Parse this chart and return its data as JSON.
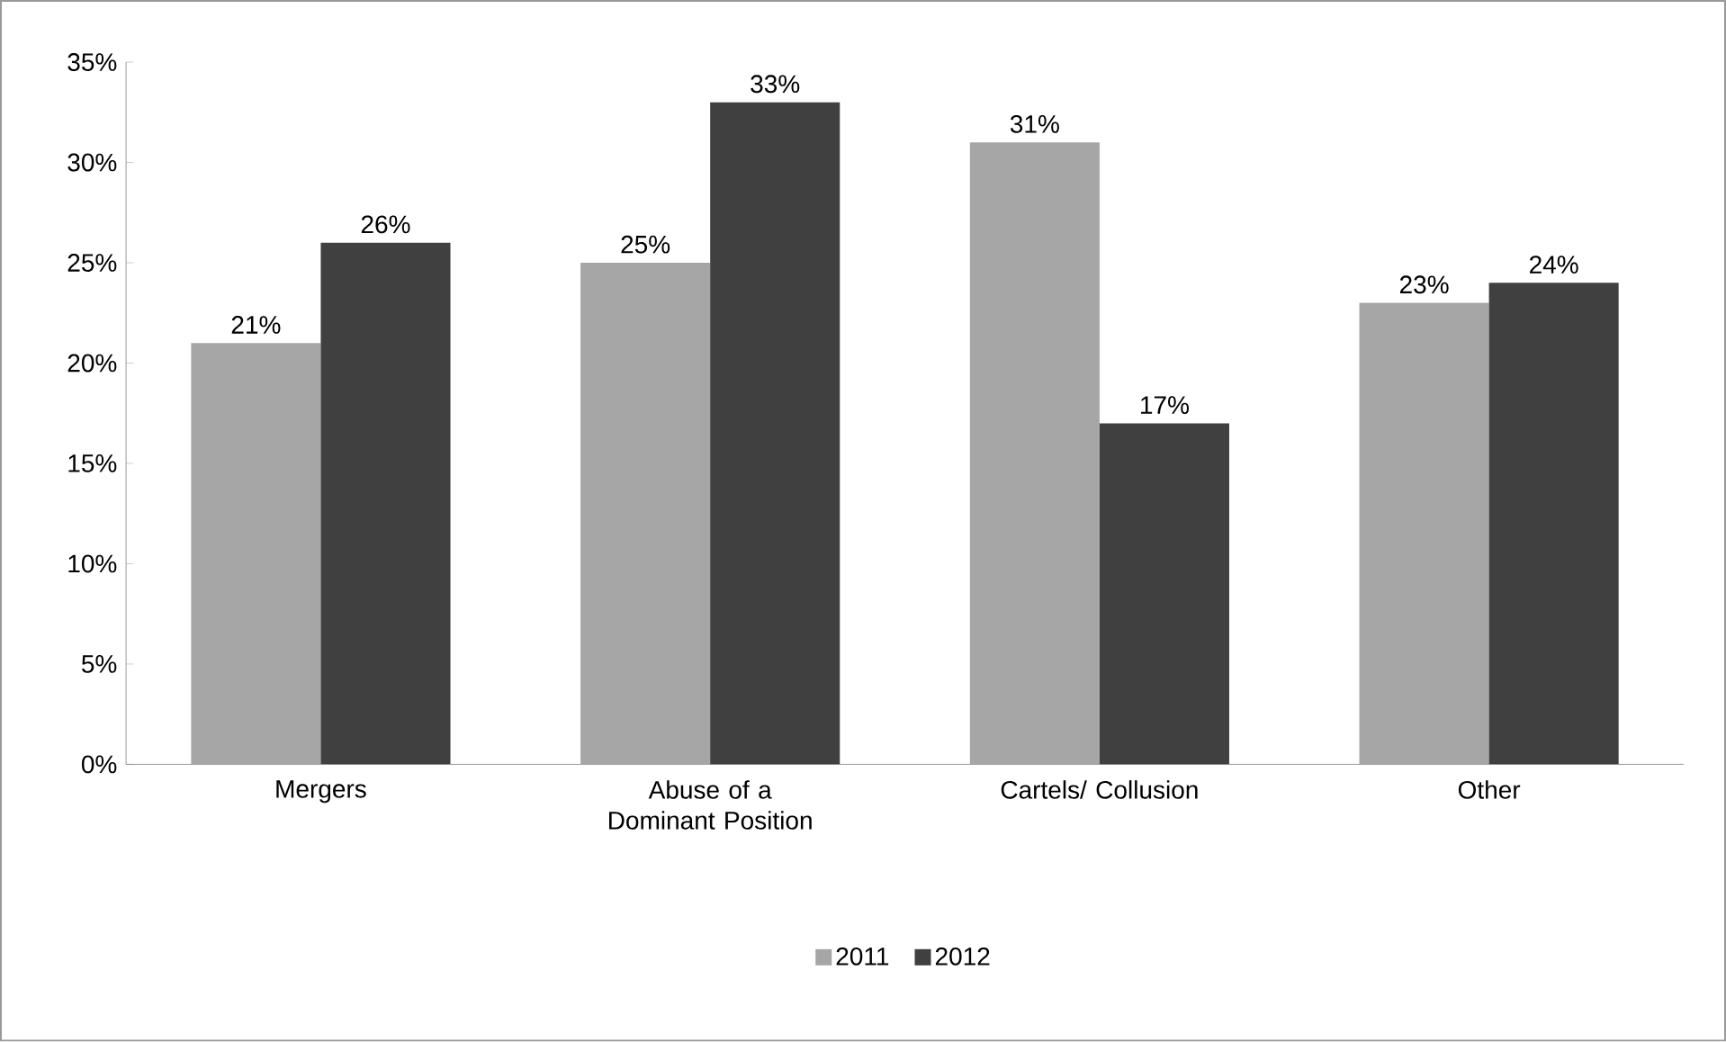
{
  "chart_data": {
    "type": "bar",
    "categories": [
      "Mergers",
      "Abuse of a Dominant Position",
      "Cartels/ Collusion",
      "Other"
    ],
    "series": [
      {
        "name": "2011",
        "color": "#a6a6a6",
        "values": [
          21,
          25,
          31,
          23
        ],
        "value_labels": [
          "21%",
          "25%",
          "31%",
          "23%"
        ]
      },
      {
        "name": "2012",
        "color": "#404040",
        "values": [
          26,
          33,
          17,
          24
        ],
        "value_labels": [
          "26%",
          "33%",
          "17%",
          "24%"
        ]
      }
    ],
    "ylim": [
      0,
      35
    ],
    "yticks": [
      {
        "value": 0,
        "label": "0%"
      },
      {
        "value": 5,
        "label": "5%"
      },
      {
        "value": 10,
        "label": "10%"
      },
      {
        "value": 15,
        "label": "15%"
      },
      {
        "value": 20,
        "label": "20%"
      },
      {
        "value": 25,
        "label": "25%"
      },
      {
        "value": 30,
        "label": "30%"
      },
      {
        "value": 35,
        "label": "35%"
      }
    ],
    "grid": false,
    "legend": "bottom"
  }
}
